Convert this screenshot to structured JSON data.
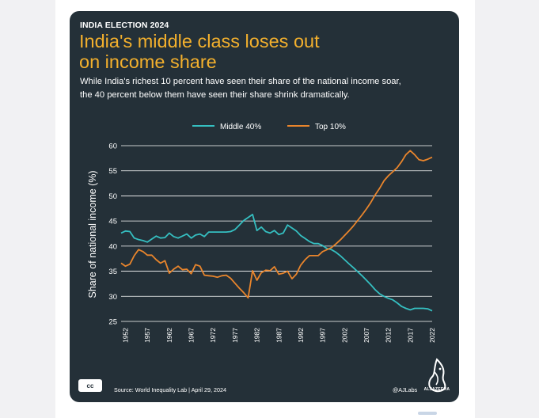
{
  "card": {
    "kicker": "INDIA ELECTION 2024",
    "title_line1": "India's middle class loses out",
    "title_line2": "on income share",
    "subtitle_line1": "While India's richest 10 percent have seen their share of the national income soar,",
    "subtitle_line2": "the 40 percent below them have seen their share shrink dramatically."
  },
  "footer": {
    "cc_label": "cc",
    "source": "Source: World Inequality Lab  |  April 29, 2024",
    "handle": "@AJLabs",
    "logo_text": "ALJAZEERA"
  },
  "colors": {
    "background": "#243038",
    "title": "#f3b02d",
    "middle": "#35bfc1",
    "top": "#e9852c",
    "grid": "#ffffff"
  },
  "chart_data": {
    "type": "line",
    "ylabel": "Share of national income (%)",
    "xlabel": "",
    "xlim": [
      1951,
      2022
    ],
    "ylim": [
      25,
      60
    ],
    "y_ticks": [
      25,
      30,
      35,
      40,
      45,
      50,
      55,
      60
    ],
    "x_ticks": [
      1952,
      1957,
      1962,
      1967,
      1972,
      1977,
      1982,
      1987,
      1992,
      1997,
      2002,
      2007,
      2012,
      2017,
      2022
    ],
    "legend_position": "top-center",
    "series": [
      {
        "name": "Middle 40%",
        "color": "#35bfc1",
        "points": [
          [
            1951,
            42.6
          ],
          [
            1952,
            43.0
          ],
          [
            1953,
            42.9
          ],
          [
            1954,
            41.6
          ],
          [
            1955,
            41.3
          ],
          [
            1956,
            41.1
          ],
          [
            1957,
            40.8
          ],
          [
            1958,
            41.4
          ],
          [
            1959,
            42.0
          ],
          [
            1960,
            41.6
          ],
          [
            1961,
            41.7
          ],
          [
            1962,
            42.6
          ],
          [
            1963,
            41.9
          ],
          [
            1964,
            41.6
          ],
          [
            1965,
            42.0
          ],
          [
            1966,
            42.4
          ],
          [
            1967,
            41.6
          ],
          [
            1968,
            42.2
          ],
          [
            1969,
            42.4
          ],
          [
            1970,
            41.9
          ],
          [
            1971,
            42.8
          ],
          [
            1972,
            42.8
          ],
          [
            1973,
            42.8
          ],
          [
            1974,
            42.8
          ],
          [
            1975,
            42.8
          ],
          [
            1976,
            42.9
          ],
          [
            1977,
            43.3
          ],
          [
            1978,
            44.2
          ],
          [
            1979,
            45.1
          ],
          [
            1980,
            45.7
          ],
          [
            1981,
            46.3
          ],
          [
            1982,
            43.1
          ],
          [
            1983,
            43.8
          ],
          [
            1984,
            42.9
          ],
          [
            1985,
            42.6
          ],
          [
            1986,
            43.1
          ],
          [
            1987,
            42.3
          ],
          [
            1988,
            42.6
          ],
          [
            1989,
            44.2
          ],
          [
            1990,
            43.6
          ],
          [
            1991,
            43.0
          ],
          [
            1992,
            42.1
          ],
          [
            1993,
            41.5
          ],
          [
            1994,
            40.9
          ],
          [
            1995,
            40.5
          ],
          [
            1996,
            40.5
          ],
          [
            1997,
            40.1
          ],
          [
            1998,
            39.5
          ],
          [
            1999,
            39.3
          ],
          [
            2000,
            38.8
          ],
          [
            2001,
            38.1
          ],
          [
            2002,
            37.3
          ],
          [
            2003,
            36.5
          ],
          [
            2004,
            35.7
          ],
          [
            2005,
            34.9
          ],
          [
            2006,
            34.1
          ],
          [
            2007,
            33.2
          ],
          [
            2008,
            32.3
          ],
          [
            2009,
            31.3
          ],
          [
            2010,
            30.5
          ],
          [
            2011,
            30.0
          ],
          [
            2012,
            29.6
          ],
          [
            2013,
            29.3
          ],
          [
            2014,
            28.7
          ],
          [
            2015,
            28.0
          ],
          [
            2016,
            27.6
          ],
          [
            2017,
            27.3
          ],
          [
            2018,
            27.6
          ],
          [
            2019,
            27.6
          ],
          [
            2020,
            27.6
          ],
          [
            2021,
            27.5
          ],
          [
            2022,
            27.1
          ]
        ]
      },
      {
        "name": "Top 10%",
        "color": "#e9852c",
        "points": [
          [
            1951,
            36.6
          ],
          [
            1952,
            36.0
          ],
          [
            1953,
            36.4
          ],
          [
            1954,
            38.1
          ],
          [
            1955,
            39.3
          ],
          [
            1956,
            38.9
          ],
          [
            1957,
            38.2
          ],
          [
            1958,
            38.2
          ],
          [
            1959,
            37.3
          ],
          [
            1960,
            36.6
          ],
          [
            1961,
            37.1
          ],
          [
            1962,
            34.6
          ],
          [
            1963,
            35.4
          ],
          [
            1964,
            36.0
          ],
          [
            1965,
            35.3
          ],
          [
            1966,
            35.4
          ],
          [
            1967,
            34.5
          ],
          [
            1968,
            36.3
          ],
          [
            1969,
            36.0
          ],
          [
            1970,
            34.2
          ],
          [
            1971,
            34.1
          ],
          [
            1972,
            34.0
          ],
          [
            1973,
            33.8
          ],
          [
            1974,
            34.1
          ],
          [
            1975,
            34.2
          ],
          [
            1976,
            33.6
          ],
          [
            1977,
            32.6
          ],
          [
            1978,
            31.6
          ],
          [
            1979,
            30.7
          ],
          [
            1980,
            29.7
          ],
          [
            1981,
            35.1
          ],
          [
            1982,
            33.2
          ],
          [
            1983,
            34.7
          ],
          [
            1984,
            35.2
          ],
          [
            1985,
            35.1
          ],
          [
            1986,
            35.9
          ],
          [
            1987,
            34.4
          ],
          [
            1988,
            34.6
          ],
          [
            1989,
            35.0
          ],
          [
            1990,
            33.5
          ],
          [
            1991,
            34.4
          ],
          [
            1992,
            36.2
          ],
          [
            1993,
            37.3
          ],
          [
            1994,
            38.1
          ],
          [
            1995,
            38.1
          ],
          [
            1996,
            38.1
          ],
          [
            1997,
            38.9
          ],
          [
            1998,
            39.3
          ],
          [
            1999,
            39.7
          ],
          [
            2000,
            40.4
          ],
          [
            2001,
            41.2
          ],
          [
            2002,
            42.1
          ],
          [
            2003,
            43.0
          ],
          [
            2004,
            44.0
          ],
          [
            2005,
            45.1
          ],
          [
            2006,
            46.2
          ],
          [
            2007,
            47.4
          ],
          [
            2008,
            48.7
          ],
          [
            2009,
            50.2
          ],
          [
            2010,
            51.5
          ],
          [
            2011,
            53.0
          ],
          [
            2012,
            54.0
          ],
          [
            2013,
            54.8
          ],
          [
            2014,
            55.6
          ],
          [
            2015,
            56.8
          ],
          [
            2016,
            58.2
          ],
          [
            2017,
            59.0
          ],
          [
            2018,
            58.2
          ],
          [
            2019,
            57.2
          ],
          [
            2020,
            57.0
          ],
          [
            2021,
            57.3
          ],
          [
            2022,
            57.7
          ]
        ]
      }
    ]
  }
}
